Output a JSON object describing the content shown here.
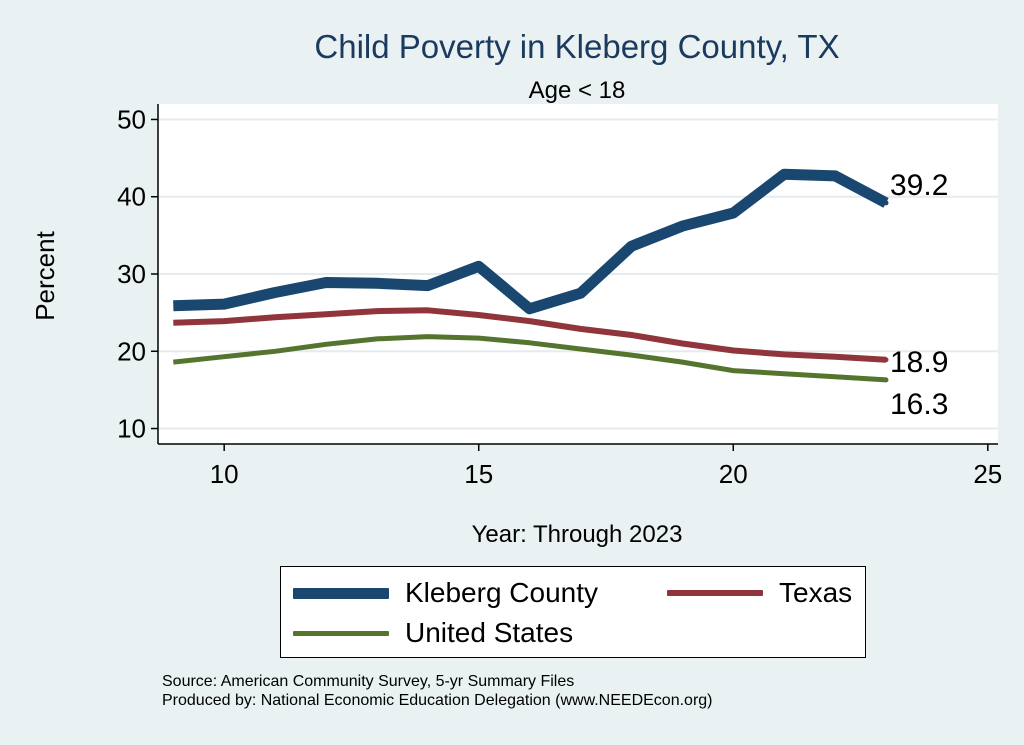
{
  "chart_data": {
    "type": "line",
    "title": "Child Poverty in Kleberg County, TX",
    "subtitle": "Age < 18",
    "xlabel": "Year: Through 2023",
    "ylabel": "Percent",
    "xlim": [
      8.7,
      25.2
    ],
    "ylim": [
      8.0,
      52.0
    ],
    "xticks": [
      10,
      15,
      20,
      25
    ],
    "yticks": [
      10,
      20,
      30,
      40,
      50
    ],
    "grid": true,
    "legend_position": "bottom",
    "x": [
      9,
      10,
      11,
      12,
      13,
      14,
      15,
      16,
      17,
      18,
      19,
      20,
      21,
      22,
      23
    ],
    "series": [
      {
        "name": "Kleberg County",
        "color": "#1a476f",
        "values": [
          25.9,
          26.1,
          27.6,
          28.9,
          28.8,
          28.5,
          31.0,
          25.5,
          27.5,
          33.6,
          36.2,
          37.9,
          42.9,
          42.7,
          39.2
        ],
        "end_label": "39.2"
      },
      {
        "name": "Texas",
        "color": "#90353b",
        "values": [
          23.7,
          23.9,
          24.4,
          24.8,
          25.2,
          25.3,
          24.7,
          23.9,
          22.9,
          22.1,
          21.0,
          20.1,
          19.6,
          19.3,
          18.9
        ],
        "end_label": "18.9"
      },
      {
        "name": "United States",
        "color": "#55752f",
        "values": [
          18.6,
          19.3,
          20.0,
          20.9,
          21.6,
          21.9,
          21.7,
          21.1,
          20.3,
          19.5,
          18.6,
          17.5,
          17.1,
          16.7,
          16.3
        ],
        "end_label": "16.3"
      }
    ]
  },
  "footer": {
    "source": "Source: American Community Survey, 5-yr Summary Files",
    "produced": "Produced by: National Economic Education Delegation (www.NEEDEcon.org)"
  }
}
